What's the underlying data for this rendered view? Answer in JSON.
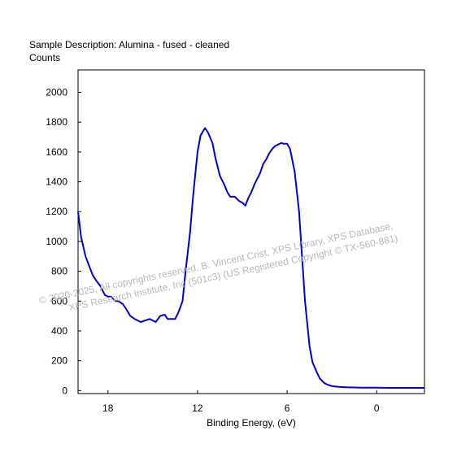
{
  "chart_data": {
    "type": "line",
    "title": "Sample Description:  Alumina - fused - cleaned",
    "ylabel": "Counts",
    "xlabel": "Binding Energy, (eV)",
    "x_reversed": true,
    "xlim": [
      20,
      -3.2
    ],
    "ylim": [
      -20,
      2150
    ],
    "x_ticks": [
      18,
      12,
      6,
      0
    ],
    "y_ticks": [
      0,
      200,
      400,
      600,
      800,
      1000,
      1200,
      1400,
      1600,
      1800,
      2000
    ],
    "grid": false,
    "line_color": "#0000cc",
    "series": [
      {
        "x": [
          20.0,
          19.8,
          19.5,
          19.2,
          19.0,
          18.8,
          18.5,
          18.2,
          18.0,
          17.8,
          17.5,
          17.3,
          17.0,
          16.8,
          16.5,
          16.2,
          16.0,
          15.8,
          15.5,
          15.2,
          15.0,
          14.8,
          14.5,
          14.2,
          14.0,
          13.8,
          13.5,
          13.3,
          13.0,
          12.8,
          12.5,
          12.3,
          12.0,
          11.8,
          11.5,
          11.3,
          11.0,
          10.8,
          10.5,
          10.2,
          10.0,
          9.8,
          9.5,
          9.2,
          9.0,
          8.8,
          8.6,
          8.4,
          8.2,
          8.0,
          7.8,
          7.6,
          7.4,
          7.2,
          7.0,
          6.8,
          6.6,
          6.4,
          6.2,
          6.0,
          5.8,
          5.5,
          5.2,
          5.0,
          4.8,
          4.5,
          4.3,
          4.0,
          3.8,
          3.5,
          3.3,
          3.0,
          2.8,
          2.5,
          2.2,
          2.0,
          1.5,
          1.0,
          0.0,
          -1.0,
          -2.0,
          -3.2
        ],
        "y": [
          1200,
          1030,
          900,
          820,
          770,
          740,
          700,
          640,
          630,
          630,
          600,
          600,
          580,
          550,
          500,
          480,
          470,
          460,
          470,
          480,
          470,
          460,
          500,
          510,
          480,
          480,
          480,
          520,
          600,
          800,
          1060,
          1300,
          1600,
          1710,
          1760,
          1730,
          1660,
          1560,
          1440,
          1380,
          1330,
          1300,
          1300,
          1270,
          1260,
          1240,
          1290,
          1330,
          1380,
          1420,
          1460,
          1520,
          1550,
          1590,
          1620,
          1640,
          1650,
          1660,
          1655,
          1655,
          1620,
          1470,
          1200,
          900,
          600,
          300,
          190,
          120,
          80,
          50,
          40,
          30,
          28,
          25,
          23,
          22,
          21,
          20,
          20,
          18,
          18,
          18
        ]
      }
    ]
  },
  "watermark": {
    "line1": "©  2020-2025,  All copyrights reserved,   B. Vincent Crist,  XPS Library, XPS Database,",
    "line2": "XPS Research Institute, Inc (501c3)   (US Registered Copyright © TX-560-881)"
  }
}
